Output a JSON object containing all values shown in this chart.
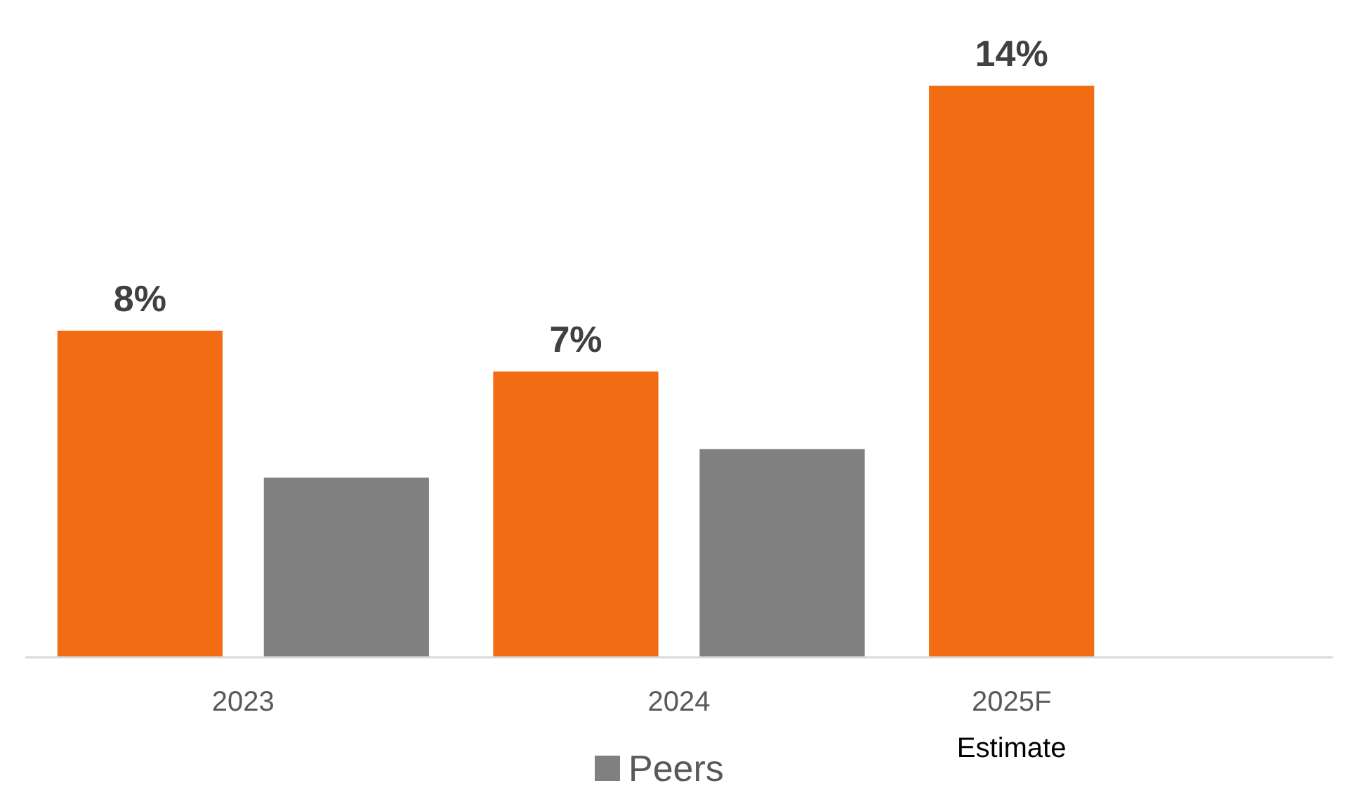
{
  "chart_data": {
    "type": "bar",
    "categories": [
      "2023",
      "2024",
      "2025F"
    ],
    "series": [
      {
        "color": "#f26c14",
        "values": [
          8,
          7,
          14
        ],
        "value_labels": [
          "8%",
          "7%",
          "14%"
        ]
      },
      {
        "name": "Peers",
        "color": "#808080",
        "values": [
          4.4,
          5.1,
          null
        ]
      }
    ],
    "legend": "bottom",
    "tick_labels": "x",
    "annotations": [
      "Estimate"
    ]
  }
}
